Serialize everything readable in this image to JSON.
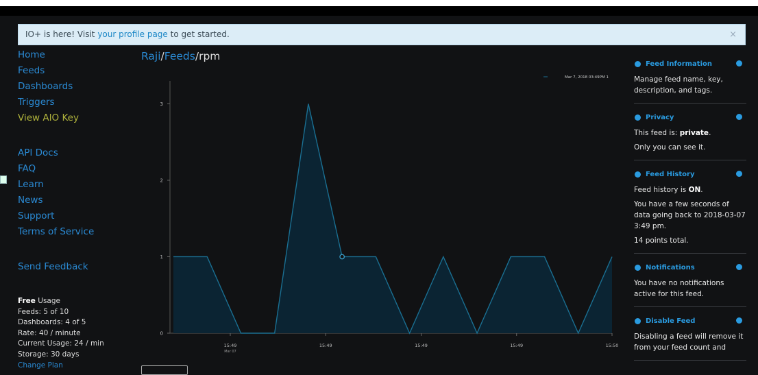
{
  "banner": {
    "before": "IO+ is here! Visit ",
    "link": "your profile page",
    "after": " to get started.",
    "close": "×"
  },
  "nav": {
    "primary": [
      "Home",
      "Feeds",
      "Dashboards",
      "Triggers",
      "View AIO Key"
    ],
    "secondary": [
      "API Docs",
      "FAQ",
      "Learn",
      "News",
      "Support",
      "Terms of Service"
    ],
    "feedback": "Send Feedback"
  },
  "usage": {
    "plan": "Free",
    "plan_suffix": " Usage",
    "lines": [
      "Feeds: 5 of 10",
      "Dashboards: 4 of 5",
      "Rate: 40 / minute",
      "Current Usage: 24 / min",
      "Storage: 30 days"
    ],
    "change": "Change Plan"
  },
  "breadcrumb": {
    "user": "Raji",
    "separator": "/",
    "feeds": "Feeds",
    "feed": "rpm"
  },
  "chart_data": {
    "type": "area",
    "series": [
      {
        "name": "Mar 7, 2018 03:49PM 1",
        "color": "#1a6f92",
        "values": [
          1,
          1,
          0,
          0,
          3,
          1,
          1,
          0,
          1,
          0,
          1,
          1,
          0,
          1
        ]
      }
    ],
    "xtick_labels": [
      "15:49",
      "15:49",
      "15:49",
      "15:49",
      "15:50"
    ],
    "xtick_sublabel": "Mar 07",
    "ylim": [
      0,
      3.3
    ],
    "yticks": [
      0,
      1,
      2,
      3
    ]
  },
  "sections": [
    {
      "title": "Feed Information",
      "paragraphs": [
        [
          {
            "t": "Manage feed name, key, description, and tags."
          }
        ]
      ]
    },
    {
      "title": "Privacy",
      "paragraphs": [
        [
          {
            "t": "This feed is: "
          },
          {
            "b": "private"
          },
          {
            "t": "."
          }
        ],
        [
          {
            "t": "Only you can see it."
          }
        ]
      ]
    },
    {
      "title": "Feed History",
      "paragraphs": [
        [
          {
            "t": "Feed history is "
          },
          {
            "b": "ON"
          },
          {
            "t": "."
          }
        ],
        [
          {
            "t": "You have a few seconds of data going back to 2018-03-07 3:49 pm."
          }
        ],
        [
          {
            "t": "14 points total."
          }
        ]
      ]
    },
    {
      "title": "Notifications",
      "paragraphs": [
        [
          {
            "t": "You have no notifications active for this feed."
          }
        ]
      ]
    },
    {
      "title": "Disable Feed",
      "paragraphs": [
        [
          {
            "t": "Disabling a feed will remove it from your feed count and"
          }
        ]
      ]
    }
  ]
}
